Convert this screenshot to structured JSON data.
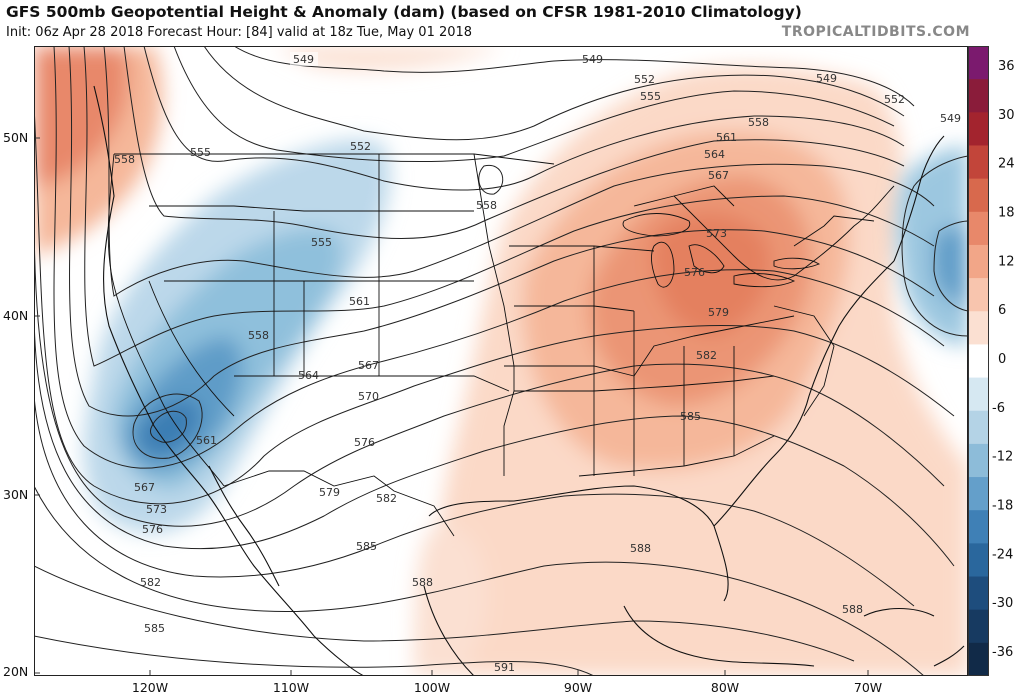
{
  "header": {
    "title": "GFS 500mb Geopotential Height & Anomaly (dam) (based on CFSR 1981-2010 Climatology)",
    "subtitle": "Init: 06z Apr 28 2018   Forecast Hour: [84]   valid at 18z Tue, May 01 2018",
    "brand": "TROPICALTIDBITS.COM"
  },
  "axes": {
    "lat_labels": [
      "50N",
      "40N",
      "30N",
      "20N"
    ],
    "lon_labels": [
      "120W",
      "110W",
      "100W",
      "90W",
      "80W",
      "70W"
    ]
  },
  "colorbar": {
    "ticks": [
      "36",
      "30",
      "24",
      "18",
      "12",
      "6",
      "0",
      "-6",
      "-12",
      "-18",
      "-24",
      "-30",
      "-36"
    ],
    "colors": [
      "#7b1a6e",
      "#8a1c3a",
      "#a3242e",
      "#c2453a",
      "#d8694d",
      "#e8886a",
      "#f2a688",
      "#f8c5ae",
      "#fbe0d2",
      "#ffffff",
      "#d6e8f2",
      "#b4d3e6",
      "#8dbcd9",
      "#649fca",
      "#3f80b6",
      "#2a679d",
      "#1e4d7d",
      "#173a61",
      "#112a48"
    ]
  },
  "contour_labels": [
    "549",
    "552",
    "555",
    "558",
    "561",
    "564",
    "567",
    "570",
    "573",
    "576",
    "579",
    "582",
    "585",
    "588",
    "591"
  ]
}
